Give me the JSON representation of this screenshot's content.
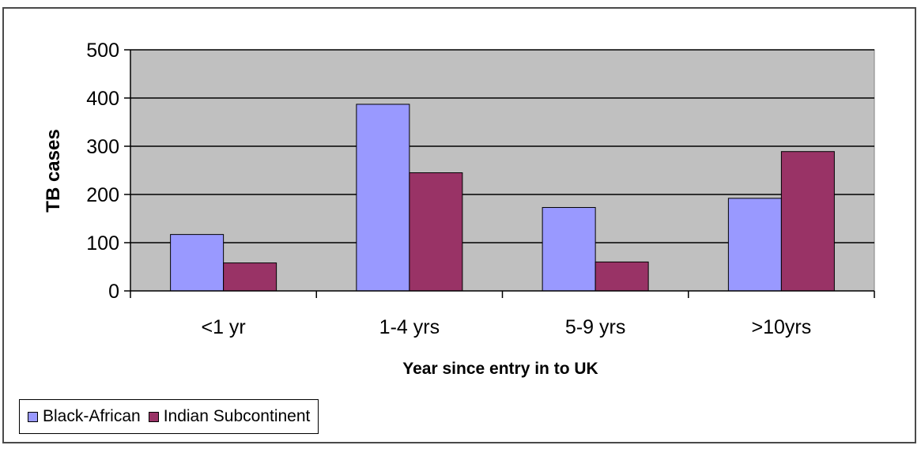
{
  "chart_data": {
    "type": "bar",
    "categories": [
      "<1 yr",
      "1-4 yrs",
      "5-9 yrs",
      ">10yrs"
    ],
    "series": [
      {
        "name": "Black-African",
        "color": "#9999ff",
        "values": [
          117,
          387,
          173,
          192
        ]
      },
      {
        "name": "Indian Subcontinent",
        "color": "#993366",
        "values": [
          58,
          245,
          60,
          289
        ]
      }
    ],
    "title": "",
    "xlabel": "Year since entry in to UK",
    "ylabel": "TB cases",
    "ylim": [
      0,
      500
    ],
    "yticks": [
      0,
      100,
      200,
      300,
      400,
      500
    ],
    "ytick_labels": [
      "0",
      "100",
      "200",
      "300",
      "400",
      "500"
    ],
    "grid": true,
    "plot_background": "#c0c0c0",
    "legend": {
      "placement": "bottom-left",
      "orientation": "horizontal"
    }
  }
}
